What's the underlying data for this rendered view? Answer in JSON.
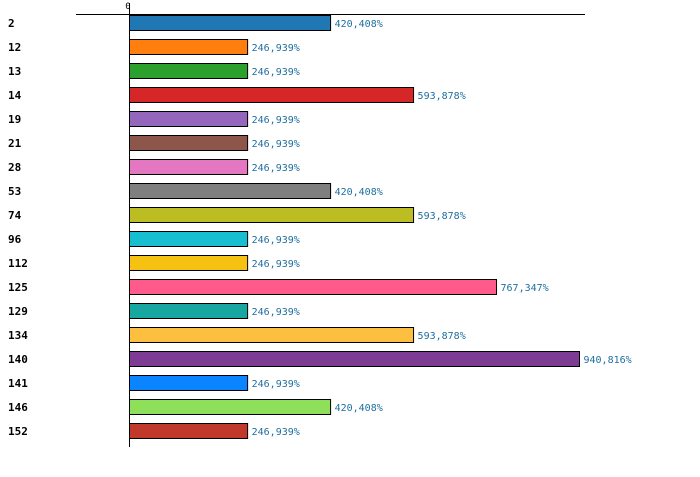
{
  "chart_data": {
    "type": "bar",
    "orientation": "horizontal",
    "title": "",
    "xlabel": "",
    "ylabel": "",
    "zero_label": "0",
    "value_suffix": "%",
    "categories": [
      "2",
      "12",
      "13",
      "14",
      "19",
      "21",
      "28",
      "53",
      "74",
      "96",
      "112",
      "125",
      "129",
      "134",
      "140",
      "141",
      "146",
      "152"
    ],
    "values": [
      420.408,
      246.939,
      246.939,
      593.878,
      246.939,
      246.939,
      246.939,
      420.408,
      593.878,
      246.939,
      246.939,
      767.347,
      246.939,
      593.878,
      940.816,
      246.939,
      420.408,
      246.939
    ],
    "value_labels": [
      "420,408%",
      "246,939%",
      "246,939%",
      "593,878%",
      "246,939%",
      "246,939%",
      "246,939%",
      "420,408%",
      "593,878%",
      "246,939%",
      "246,939%",
      "767,347%",
      "246,939%",
      "593,878%",
      "940,816%",
      "246,939%",
      "420,408%",
      "246,939%"
    ],
    "colors": [
      "#1f77b4",
      "#ff7f0e",
      "#2ca02c",
      "#d62728",
      "#9467bd",
      "#8c564b",
      "#e377c2",
      "#7f7f7f",
      "#bcbd22",
      "#17becf",
      "#f5c211",
      "#ff5a8c",
      "#17a7a0",
      "#fdbf3f",
      "#7e3b94",
      "#0a84ff",
      "#8ee05a",
      "#c0392b"
    ],
    "xlim": [
      0,
      1000
    ],
    "grid": false,
    "legend": "none"
  }
}
